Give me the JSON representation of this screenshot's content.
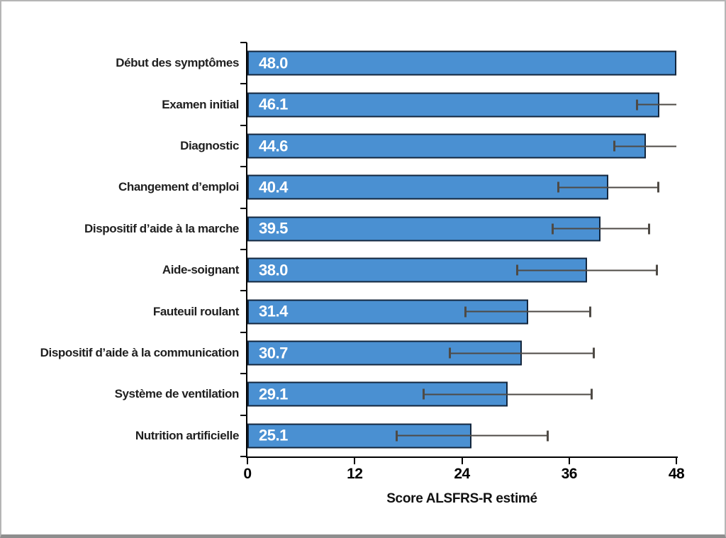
{
  "chart_data": {
    "type": "bar",
    "orientation": "horizontal",
    "title": "",
    "xlabel": "Score ALSFRS-R estimé",
    "xlim": [
      0,
      48
    ],
    "xticks": [
      "0",
      "12",
      "24",
      "36",
      "48"
    ],
    "xtick_values": [
      0,
      12,
      24,
      36,
      48
    ],
    "grid": false,
    "legend": null,
    "categories": [
      "Début des symptômes",
      "Examen initial",
      "Diagnostic",
      "Changement d’emploi",
      "Dispositif d’aide à la marche",
      "Aide-soignant",
      "Fauteuil roulant",
      "Dispositif d’aide à la communication",
      "Système de ventilation",
      "Nutrition artificielle"
    ],
    "values": [
      48.0,
      46.1,
      44.6,
      40.4,
      39.5,
      38.0,
      31.4,
      30.7,
      29.1,
      25.1
    ],
    "value_labels": [
      "48.0",
      "46.1",
      "44.6",
      "40.4",
      "39.5",
      "38.0",
      "31.4",
      "30.7",
      "29.1",
      "25.1"
    ],
    "error_bars": [
      null,
      {
        "low": 43.5,
        "high": 48.0,
        "right_cap": false
      },
      {
        "low": 40.9,
        "high": 48.0,
        "right_cap": false
      },
      {
        "low": 34.7,
        "high": 46.1,
        "right_cap": true
      },
      {
        "low": 34.0,
        "high": 45.1,
        "right_cap": true
      },
      {
        "low": 30.1,
        "high": 45.9,
        "right_cap": true
      },
      {
        "low": 24.3,
        "high": 38.5,
        "right_cap": true
      },
      {
        "low": 22.5,
        "high": 38.9,
        "right_cap": true
      },
      {
        "low": 19.6,
        "high": 38.6,
        "right_cap": true
      },
      {
        "low": 16.6,
        "high": 33.7,
        "right_cap": true
      }
    ],
    "colors": {
      "bar_fill": "#4a90d2",
      "bar_border": "#13263d",
      "error_bar": "#4e4a45",
      "axis": "#000000",
      "category_text": "#1f1f1f",
      "value_text": "#ffffff",
      "background": "#ffffff",
      "frame_border": "#b5b5b5",
      "frame_border_bottom": "#8e8e8e"
    }
  }
}
